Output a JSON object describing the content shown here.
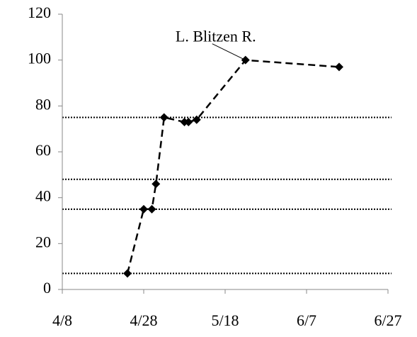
{
  "chart_data": {
    "type": "line",
    "x": [
      "4/24",
      "4/28",
      "4/30",
      "5/1",
      "5/3",
      "5/8",
      "5/9",
      "5/11",
      "5/23",
      "6/15"
    ],
    "series": [
      {
        "color": "#000000",
        "values": [
          7,
          35,
          35,
          46,
          75,
          73,
          73,
          74,
          100,
          97
        ]
      }
    ],
    "xlim": [
      "4/8",
      "6/27"
    ],
    "xticks": [
      "4/8",
      "4/28",
      "5/18",
      "6/7",
      "6/27"
    ],
    "ylim": [
      0,
      120
    ],
    "yticks": [
      0,
      20,
      40,
      60,
      80,
      100,
      120
    ],
    "reference_lines": [
      75,
      48,
      35,
      7
    ],
    "annotations": [
      {
        "text": "L. Blitzen R.",
        "point": 8
      }
    ]
  }
}
